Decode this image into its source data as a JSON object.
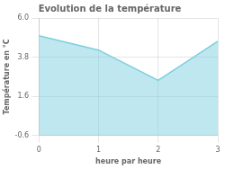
{
  "chart_data": {
    "type": "area",
    "title": "Evolution de la température",
    "xlabel": "heure par heure",
    "ylabel": "Température en °C",
    "x": [
      0,
      1,
      2,
      3
    ],
    "values": [
      5.0,
      4.2,
      2.5,
      4.7
    ],
    "color": "#7ecfe0",
    "xlim": [
      0,
      3
    ],
    "xticks": [
      0,
      1,
      2,
      3
    ],
    "ylim": [
      -0.6,
      6.0
    ],
    "yticks": [
      -0.6,
      1.6,
      3.8,
      {
        "value": 6.0,
        "label": "6.0"
      }
    ],
    "grid": true
  }
}
